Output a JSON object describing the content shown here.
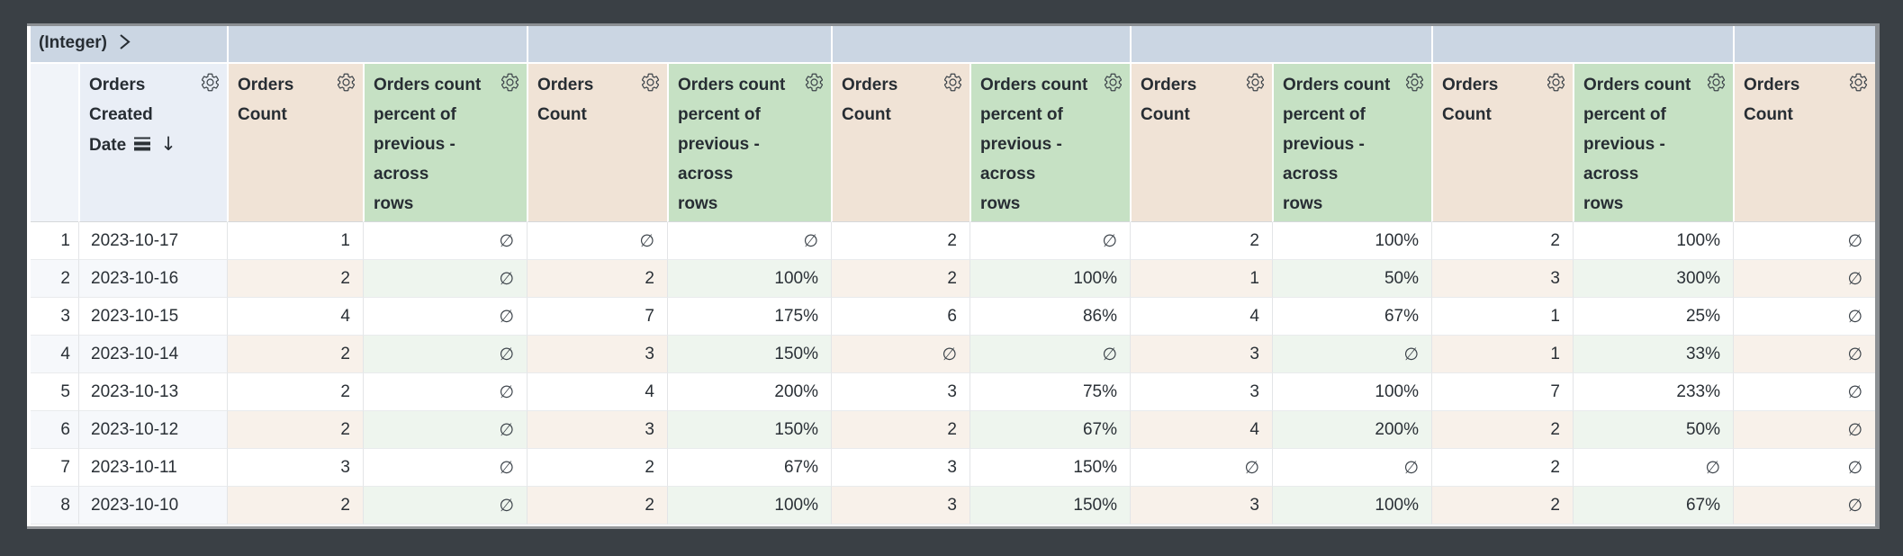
{
  "window": {
    "frame_color": "#3a4045"
  },
  "pivot": {
    "label": "(Integer)",
    "expander_icon": "chevron-right-icon",
    "groups": [
      "",
      "",
      "",
      "",
      "",
      ""
    ]
  },
  "header": {
    "row_number_header": "",
    "dimension": {
      "label": "Orders Created Date",
      "lines": [
        "Orders",
        "Created",
        "Date"
      ],
      "icons": [
        "subtotal-icon",
        "sort-descending-arrow"
      ],
      "sort_arrow": "↓",
      "has_gear": true
    },
    "measures": [
      {
        "kind": "count",
        "label": "Orders Count",
        "lines": [
          "Orders",
          "Count"
        ]
      },
      {
        "kind": "percent",
        "label": "Orders count percent of previous - across rows",
        "lines": [
          "Orders count",
          "percent of",
          "previous -",
          "across",
          "rows"
        ]
      },
      {
        "kind": "count",
        "label": "Orders Count",
        "lines": [
          "Orders",
          "Count"
        ]
      },
      {
        "kind": "percent",
        "label": "Orders count percent of previous - across rows",
        "lines": [
          "Orders count",
          "percent of",
          "previous -",
          "across",
          "rows"
        ]
      },
      {
        "kind": "count",
        "label": "Orders Count",
        "lines": [
          "Orders",
          "Count"
        ]
      },
      {
        "kind": "percent",
        "label": "Orders count percent of previous - across rows",
        "lines": [
          "Orders count",
          "percent of",
          "previous -",
          "across",
          "rows"
        ]
      },
      {
        "kind": "count",
        "label": "Orders Count",
        "lines": [
          "Orders",
          "Count"
        ]
      },
      {
        "kind": "percent",
        "label": "Orders count percent of previous - across rows",
        "lines": [
          "Orders count",
          "percent of",
          "previous -",
          "across",
          "rows"
        ]
      },
      {
        "kind": "count",
        "label": "Orders Count",
        "lines": [
          "Orders",
          "Count"
        ]
      },
      {
        "kind": "percent",
        "label": "Orders count percent of previous - across rows",
        "lines": [
          "Orders count",
          "percent of",
          "previous -",
          "across",
          "rows"
        ]
      },
      {
        "kind": "count",
        "label": "Orders Count",
        "lines": [
          "Orders",
          "Count"
        ]
      }
    ]
  },
  "null_symbol": "∅",
  "colors": {
    "pivot_bar": "#cbd6e3",
    "dimension_header": "#e9eef6",
    "count_header": "#f0e3d6",
    "percent_header": "#c6e1c4",
    "stripe_dimension": "#f6f8fb",
    "stripe_count": "#f8f1ea",
    "stripe_percent": "#eef5ee",
    "frame": "#3a4045"
  },
  "rows": [
    {
      "n": "1",
      "date": "2023-10-17",
      "values": [
        "1",
        "∅",
        "∅",
        "∅",
        "2",
        "∅",
        "2",
        "100%",
        "2",
        "100%",
        "∅"
      ]
    },
    {
      "n": "2",
      "date": "2023-10-16",
      "values": [
        "2",
        "∅",
        "2",
        "100%",
        "2",
        "100%",
        "1",
        "50%",
        "3",
        "300%",
        "∅"
      ]
    },
    {
      "n": "3",
      "date": "2023-10-15",
      "values": [
        "4",
        "∅",
        "7",
        "175%",
        "6",
        "86%",
        "4",
        "67%",
        "1",
        "25%",
        "∅"
      ]
    },
    {
      "n": "4",
      "date": "2023-10-14",
      "values": [
        "2",
        "∅",
        "3",
        "150%",
        "∅",
        "∅",
        "3",
        "∅",
        "1",
        "33%",
        "∅"
      ]
    },
    {
      "n": "5",
      "date": "2023-10-13",
      "values": [
        "2",
        "∅",
        "4",
        "200%",
        "3",
        "75%",
        "3",
        "100%",
        "7",
        "233%",
        "∅"
      ]
    },
    {
      "n": "6",
      "date": "2023-10-12",
      "values": [
        "2",
        "∅",
        "3",
        "150%",
        "2",
        "67%",
        "4",
        "200%",
        "2",
        "50%",
        "∅"
      ]
    },
    {
      "n": "7",
      "date": "2023-10-11",
      "values": [
        "3",
        "∅",
        "2",
        "67%",
        "3",
        "150%",
        "∅",
        "∅",
        "2",
        "∅",
        "∅"
      ]
    },
    {
      "n": "8",
      "date": "2023-10-10",
      "values": [
        "2",
        "∅",
        "2",
        "100%",
        "3",
        "150%",
        "3",
        "100%",
        "2",
        "67%",
        "∅"
      ]
    }
  ]
}
